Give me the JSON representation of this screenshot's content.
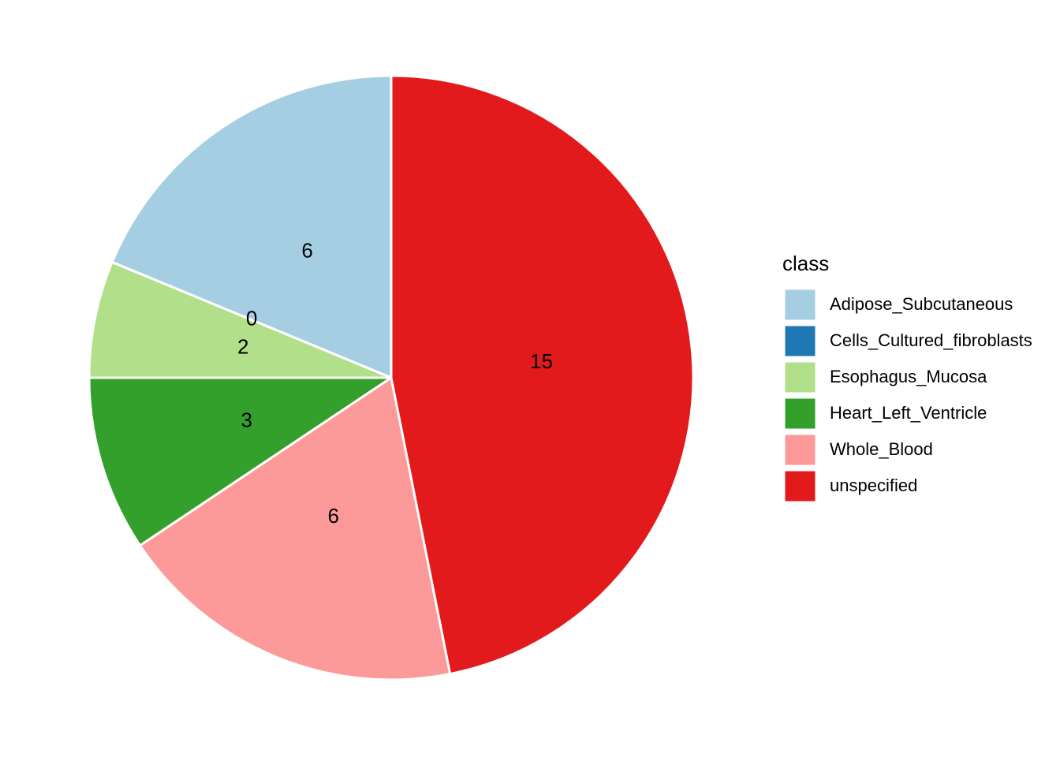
{
  "chart_data": {
    "type": "pie",
    "categories": [
      "Adipose_Subcutaneous",
      "Cells_Cultured_fibroblasts",
      "Esophagus_Mucosa",
      "Heart_Left_Ventricle",
      "Whole_Blood",
      "unspecified"
    ],
    "values": [
      6,
      0,
      2,
      3,
      6,
      15
    ],
    "colors": [
      "#a6cee3",
      "#1f78b4",
      "#b2df8a",
      "#33a02c",
      "#fb9a99",
      "#e31a1c"
    ],
    "legend_title": "class",
    "legend": "right"
  }
}
